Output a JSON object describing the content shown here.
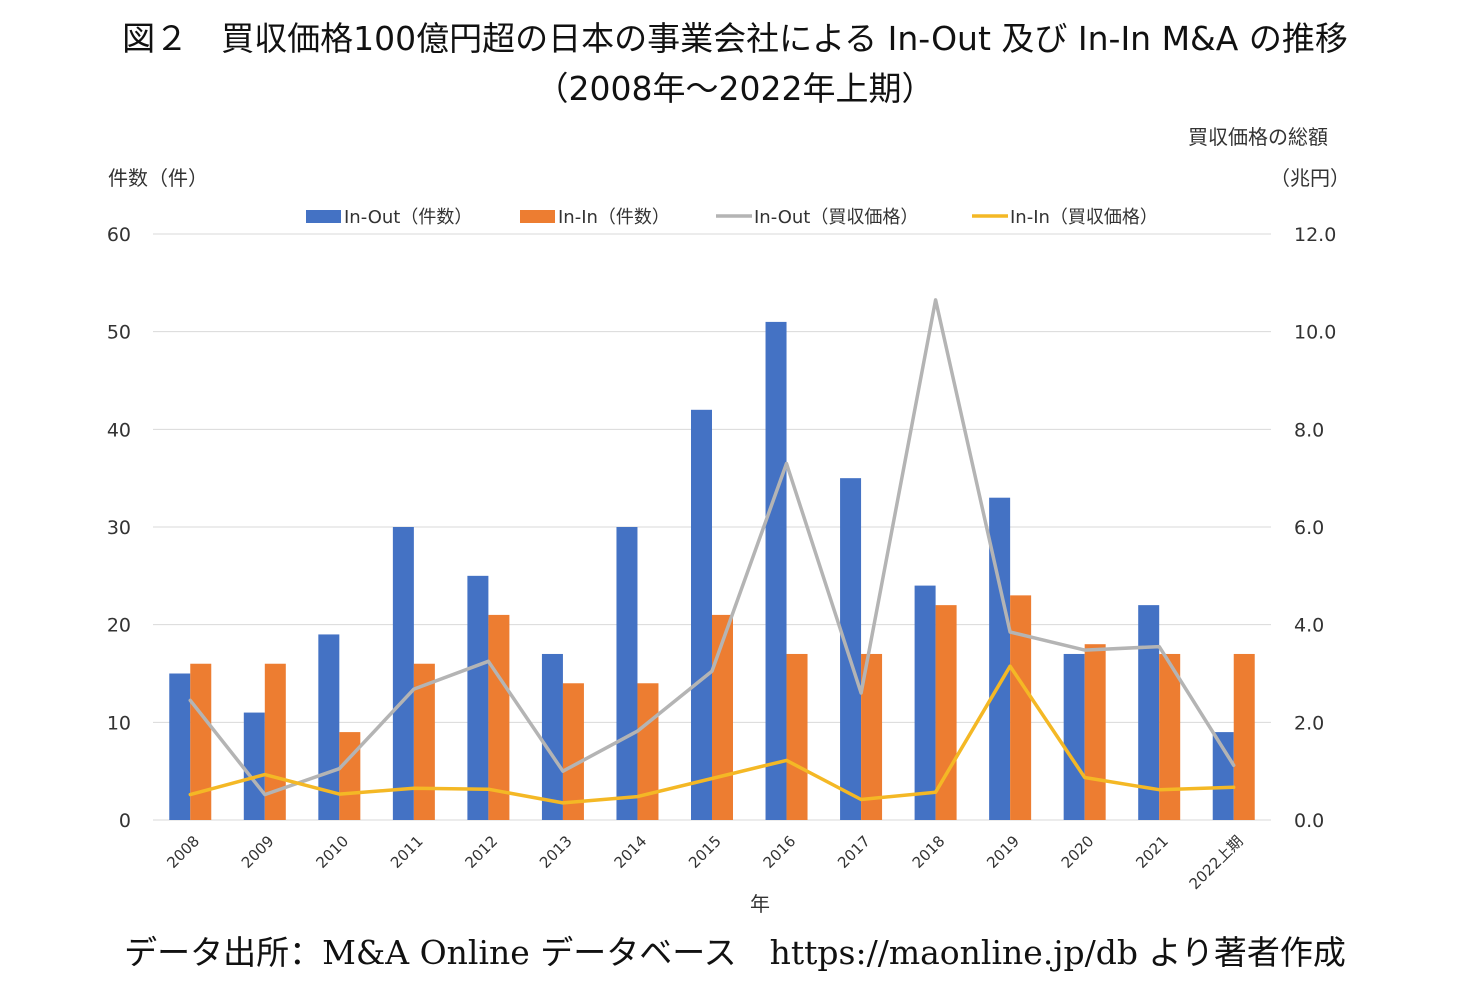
{
  "figure": {
    "title_line1": "図２　買収価格100億円超の日本の事業会社による In-Out 及び In-In M&A の推移",
    "title_line2": "（2008年～2022年上期）",
    "left_axis_unit": "件数（件）",
    "right_axis_unit_line1": "買収価格の総額",
    "right_axis_unit_line2": "（兆円）",
    "x_axis_label": "年",
    "source": "データ出所：M&A Online データベース　https://maonline.jp/db より著者作成"
  },
  "colors": {
    "in_out_count": "#4472C4",
    "in_in_count": "#ED7D31",
    "in_out_price": "#B4B4B4",
    "in_in_price": "#F4B825",
    "grid": "#D9D9D9"
  },
  "chart_data": {
    "type": "bar",
    "categories": [
      "2008",
      "2009",
      "2010",
      "2011",
      "2012",
      "2013",
      "2014",
      "2015",
      "2016",
      "2017",
      "2018",
      "2019",
      "2020",
      "2021",
      "2022上期"
    ],
    "xlabel": "年",
    "ylabel": "件数（件）",
    "y2label": "買収価格の総額（兆円）",
    "ylim": [
      0,
      60
    ],
    "y2lim": [
      0,
      12
    ],
    "yticks": [
      "0",
      "10",
      "20",
      "30",
      "40",
      "50",
      "60"
    ],
    "y2ticks": [
      "0.0",
      "2.0",
      "4.0",
      "6.0",
      "8.0",
      "10.0",
      "12.0"
    ],
    "grid": true,
    "legend_position": "top",
    "series": [
      {
        "name": "In-Out（件数）",
        "kind": "bar",
        "axis": "left",
        "color_key": "in_out_count",
        "values": [
          15,
          11,
          19,
          30,
          25,
          17,
          30,
          42,
          51,
          35,
          24,
          33,
          17,
          22,
          9
        ]
      },
      {
        "name": "In-In（件数）",
        "kind": "bar",
        "axis": "left",
        "color_key": "in_in_count",
        "values": [
          16,
          16,
          9,
          16,
          21,
          14,
          14,
          21,
          17,
          17,
          22,
          23,
          18,
          17,
          17
        ]
      },
      {
        "name": "In-Out（買収価格）",
        "kind": "line",
        "axis": "right",
        "color_key": "in_out_price",
        "values": [
          2.45,
          0.52,
          1.05,
          2.68,
          3.25,
          1.0,
          1.82,
          3.05,
          7.3,
          2.6,
          10.65,
          3.85,
          3.48,
          3.55,
          1.12
        ]
      },
      {
        "name": "In-In（買収価格）",
        "kind": "line",
        "axis": "right",
        "color_key": "in_in_price",
        "values": [
          0.52,
          0.93,
          0.53,
          0.65,
          0.63,
          0.35,
          0.48,
          0.85,
          1.22,
          0.42,
          0.57,
          3.15,
          0.87,
          0.62,
          0.67
        ]
      }
    ]
  }
}
